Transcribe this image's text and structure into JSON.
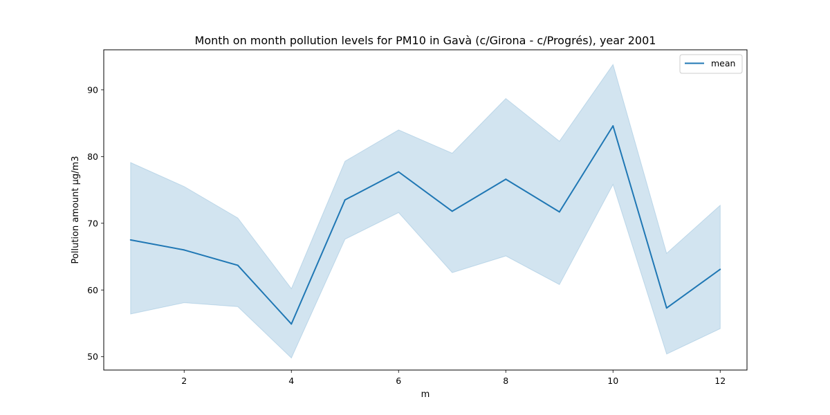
{
  "chart_data": {
    "type": "line",
    "title": "Month on month pollution levels for PM10 in Gavà (c/Girona - c/Progrés), year 2001",
    "xlabel": "m",
    "ylabel": "Pollution amount µg/m3",
    "xlim": [
      0.5,
      12.5
    ],
    "ylim": [
      48,
      96
    ],
    "xticks": [
      2,
      4,
      6,
      8,
      10,
      12
    ],
    "yticks": [
      50,
      60,
      70,
      80,
      90
    ],
    "grid": false,
    "legend_position": "top-right",
    "series": [
      {
        "name": "mean",
        "color": "#1f77b4",
        "x": [
          1,
          2,
          3,
          4,
          5,
          6,
          7,
          8,
          9,
          10,
          11,
          12
        ],
        "values": [
          67.5,
          66.0,
          63.7,
          54.9,
          73.5,
          77.7,
          71.8,
          76.6,
          71.7,
          84.6,
          57.3,
          63.1
        ],
        "ci_lower": [
          56.4,
          58.1,
          57.5,
          49.8,
          67.6,
          71.6,
          62.6,
          65.1,
          60.8,
          75.8,
          50.4,
          54.2
        ],
        "ci_upper": [
          79.1,
          75.5,
          70.8,
          60.2,
          79.3,
          84.0,
          80.5,
          88.7,
          82.3,
          93.8,
          65.5,
          72.7
        ]
      }
    ]
  }
}
